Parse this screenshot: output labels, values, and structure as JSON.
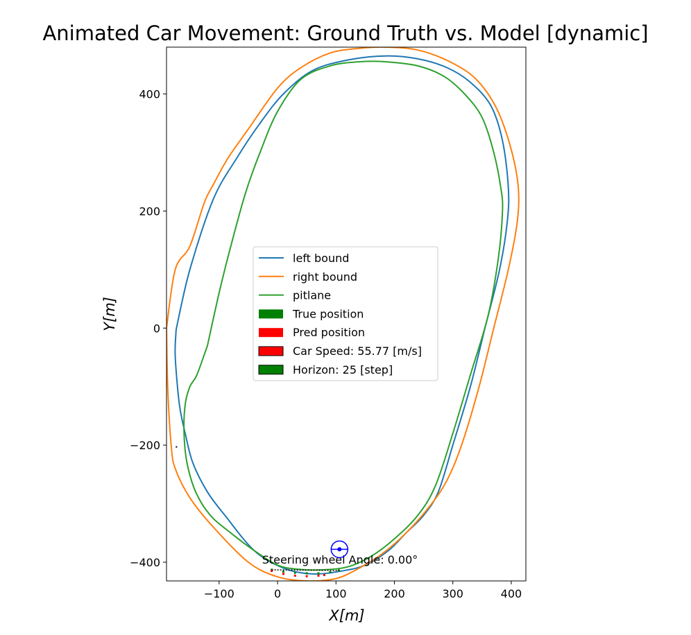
{
  "chart_data": {
    "type": "line",
    "title": "Animated Car Movement: Ground Truth vs. Model [dynamic]",
    "xlabel": "X[m]",
    "ylabel": "Y[m]",
    "xlim": [
      -190,
      425
    ],
    "ylim": [
      -432,
      480
    ],
    "xticks": [
      -100,
      0,
      100,
      200,
      300,
      400
    ],
    "yticks": [
      -400,
      -200,
      0,
      200,
      400
    ],
    "x_tick_labels": [
      "−100",
      "0",
      "100",
      "200",
      "300",
      "400"
    ],
    "y_tick_labels": [
      "−400",
      "−200",
      "0",
      "200",
      "400"
    ],
    "grid": false,
    "legend_position": "center",
    "series": [
      {
        "name": "left bound",
        "color": "#1f77b4",
        "x": [
          -173,
          -150,
          -110,
          -70,
          -30,
          10,
          60,
          120,
          185,
          240,
          290,
          330,
          365,
          385,
          395,
          393,
          380,
          355,
          330,
          300,
          275,
          250,
          220,
          190,
          150,
          110,
          60,
          10,
          -40,
          -90,
          -120,
          -145,
          -158,
          -168,
          -175,
          -174,
          -173
        ],
        "y": [
          0,
          100,
          220,
          290,
          350,
          400,
          440,
          458,
          465,
          460,
          445,
          420,
          380,
          320,
          240,
          180,
          100,
          0,
          -100,
          -200,
          -280,
          -320,
          -350,
          -380,
          -405,
          -415,
          -420,
          -410,
          -380,
          -320,
          -280,
          -230,
          -180,
          -130,
          -50,
          -10,
          0
        ]
      },
      {
        "name": "right bound",
        "color": "#ff7f0e",
        "x": [
          -190,
          -175,
          -150,
          -125,
          -110,
          -85,
          -50,
          0,
          40,
          90,
          140,
          185,
          240,
          295,
          340,
          375,
          400,
          412,
          410,
          395,
          370,
          345,
          315,
          290,
          260,
          220,
          180,
          140,
          100,
          50,
          0,
          -50,
          -110,
          -150,
          -175,
          -182,
          -188,
          -190
        ],
        "y": [
          0,
          100,
          140,
          215,
          245,
          290,
          340,
          410,
          445,
          470,
          478,
          480,
          475,
          455,
          425,
          375,
          305,
          240,
          180,
          100,
          0,
          -100,
          -200,
          -260,
          -305,
          -350,
          -385,
          -410,
          -428,
          -432,
          -425,
          -400,
          -340,
          -290,
          -240,
          -200,
          -100,
          0
        ]
      },
      {
        "name": "pitlane",
        "color": "#2ca02c",
        "x": [
          -120,
          -100,
          -80,
          -55,
          -30,
          0,
          40,
          90,
          140,
          185,
          240,
          285,
          320,
          350,
          370,
          382,
          385,
          378,
          360,
          330,
          300,
          270,
          240,
          200,
          160,
          120,
          75,
          35,
          0,
          -40,
          -80,
          -115,
          -140,
          -155,
          -160,
          -158,
          -150,
          -138,
          -120
        ],
        "y": [
          -30,
          60,
          140,
          230,
          300,
          370,
          425,
          448,
          455,
          455,
          448,
          430,
          400,
          360,
          300,
          240,
          200,
          120,
          20,
          -80,
          -180,
          -270,
          -320,
          -360,
          -390,
          -408,
          -413,
          -412,
          -405,
          -380,
          -350,
          -320,
          -280,
          -230,
          -180,
          -130,
          -100,
          -80,
          -30
        ]
      }
    ],
    "legend": {
      "items": [
        {
          "label": "left bound",
          "kind": "line",
          "color": "#1f77b4"
        },
        {
          "label": "right bound",
          "kind": "line",
          "color": "#ff7f0e"
        },
        {
          "label": "pitlane",
          "kind": "line",
          "color": "#2ca02c"
        },
        {
          "label": "True position",
          "kind": "patch",
          "color": "#008000",
          "edge": "none"
        },
        {
          "label": "Pred position",
          "kind": "patch",
          "color": "#ff0000",
          "edge": "none"
        },
        {
          "label": "Car Speed: 55.77 [m/s]",
          "kind": "patch",
          "color": "#ff0000",
          "edge": "#000000"
        },
        {
          "label": "Horizon: 25 [step]",
          "kind": "patch",
          "color": "#008000",
          "edge": "#000000"
        }
      ]
    },
    "car_speed_mps": 55.77,
    "horizon_steps": 25,
    "steering_annotation": "Steering wheel Angle: 0.00°",
    "steering_angle_deg": 0.0,
    "steering_wheel": {
      "x": 106,
      "y": -378,
      "color": "#0000ff"
    },
    "true_position": {
      "color": "#008000",
      "x": [
        -10,
        10,
        30,
        50,
        70,
        90,
        105
      ],
      "y": [
        -413,
        -416,
        -418,
        -419,
        -419,
        -417,
        -414
      ]
    },
    "pred_position": {
      "color": "#ff0000",
      "x": [
        -10,
        10,
        30,
        50,
        70,
        80
      ],
      "y": [
        -415,
        -420,
        -423,
        -424,
        -423,
        -422
      ]
    },
    "stray_marks": [
      {
        "x": -173,
        "y": -203
      }
    ]
  }
}
